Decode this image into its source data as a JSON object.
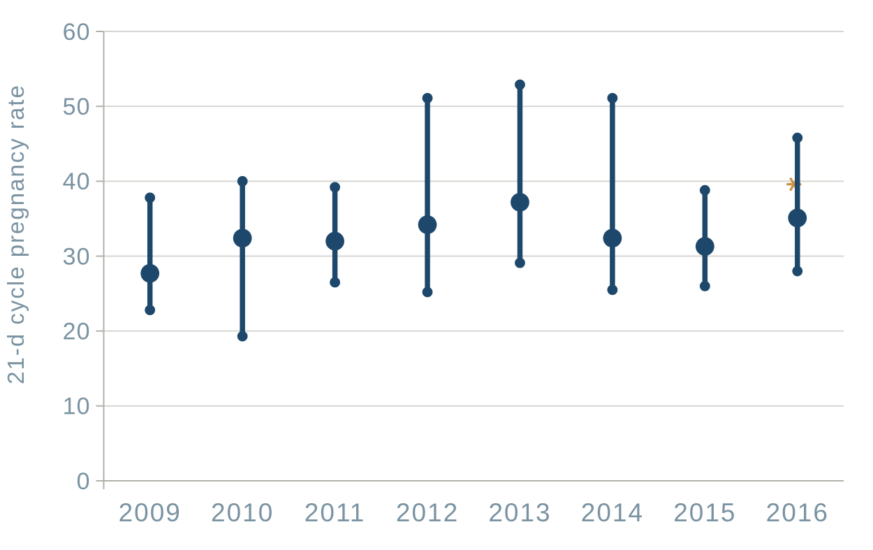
{
  "chart_data": {
    "type": "scatter",
    "subtype": "point-estimates-with-error-bars",
    "title": "",
    "xlabel": "",
    "ylabel": "21-d cycle pregnancy rate",
    "categories": [
      "2009",
      "2010",
      "2011",
      "2012",
      "2013",
      "2014",
      "2015",
      "2016"
    ],
    "series": [
      {
        "name": "21-d cycle pregnancy rate",
        "values": [
          27.7,
          32.4,
          32.0,
          34.2,
          37.2,
          32.4,
          31.3,
          35.1
        ],
        "lower": [
          22.8,
          19.3,
          26.5,
          25.2,
          29.1,
          25.5,
          26.0,
          28.0
        ],
        "upper": [
          37.8,
          40.0,
          39.2,
          51.1,
          52.9,
          51.1,
          38.8,
          45.8
        ]
      }
    ],
    "ylim": [
      0,
      60
    ],
    "yticks": [
      0,
      10,
      20,
      30,
      40,
      50,
      60
    ],
    "grid": "horizontal",
    "legend_position": "none",
    "annotations": [
      {
        "category": "2016",
        "value": 39.6,
        "symbol": "asterisk",
        "color": "#cf9045"
      }
    ],
    "colors": {
      "marker": "#1d486b",
      "grid": "#d8d6d2",
      "axis": "#b3b0ab",
      "text": "#7a93a2"
    }
  }
}
